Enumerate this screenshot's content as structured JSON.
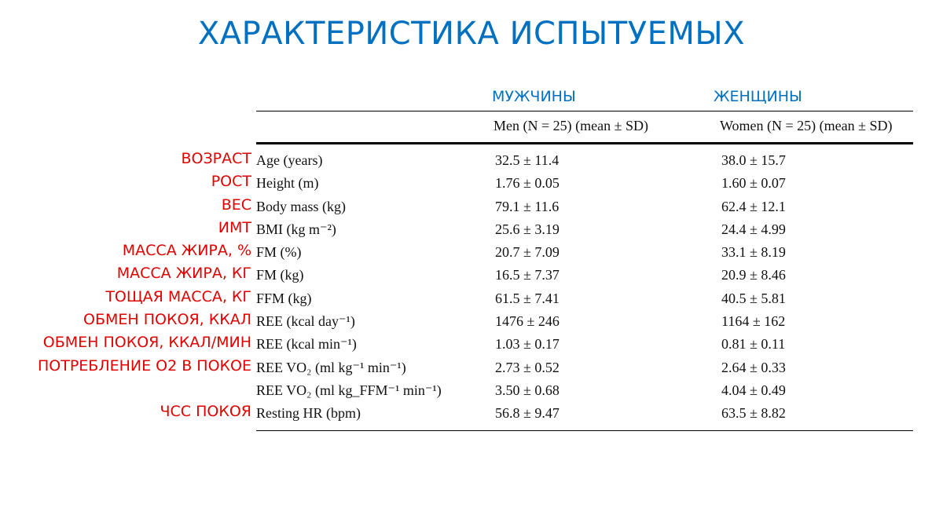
{
  "title": "ХАРАКТЕРИСТИКА ИСПЫТУЕМЫХ",
  "columns": {
    "men_ru": "МУЖЧИНЫ",
    "women_ru": "ЖЕНЩИНЫ",
    "men_header": "Men (N = 25) (mean ± SD)",
    "women_header": "Women (N = 25) (mean ± SD)"
  },
  "rows": [
    {
      "ru": "ВОЗРАСТ",
      "en": "Age (years)",
      "men": "32.5 ± 11.4",
      "women": "38.0 ± 15.7"
    },
    {
      "ru": "РОСТ",
      "en": "Height (m)",
      "men": "1.76 ± 0.05",
      "women": "1.60 ± 0.07"
    },
    {
      "ru": "ВЕС",
      "en": "Body mass (kg)",
      "men": "79.1 ± 11.6",
      "women": "62.4 ± 12.1"
    },
    {
      "ru": "ИМТ",
      "en": "BMI (kg m⁻²)",
      "men": "25.6 ± 3.19",
      "women": "24.4 ± 4.99"
    },
    {
      "ru": "МАССА ЖИРА, %",
      "en": "FM (%)",
      "men": "20.7 ± 7.09",
      "women": "33.1 ± 8.19"
    },
    {
      "ru": "МАССА ЖИРА, КГ",
      "en": "FM (kg)",
      "men": "16.5 ± 7.37",
      "women": "20.9 ± 8.46"
    },
    {
      "ru": "ТОЩАЯ МАССА, КГ",
      "en": "FFM (kg)",
      "men": "61.5 ± 7.41",
      "women": "40.5 ± 5.81"
    },
    {
      "ru": "ОБМЕН ПОКОЯ, ККАЛ",
      "en": "REE (kcal day⁻¹)",
      "men": "1476 ± 246",
      "women": "1164 ± 162"
    },
    {
      "ru": "ОБМЕН ПОКОЯ, ККАЛ/МИН",
      "en": "REE (kcal min⁻¹)",
      "men": "1.03 ± 0.17",
      "women": "0.81 ± 0.11"
    },
    {
      "ru": "ПОТРЕБЛЕНИЕ О2 В ПОКОЕ",
      "en": "REE VO₂ (ml kg⁻¹ min⁻¹)",
      "men": "2.73 ± 0.52",
      "women": "2.64 ± 0.33"
    },
    {
      "ru": "",
      "en": "REE VO₂ (ml kg_FFM⁻¹ min⁻¹)",
      "men": "3.50 ± 0.68",
      "women": "4.04 ± 0.49"
    },
    {
      "ru": "ЧСС ПОКОЯ",
      "en": "Resting HR (bpm)",
      "men": "56.8 ± 9.47",
      "women": "63.5 ± 8.82"
    }
  ]
}
